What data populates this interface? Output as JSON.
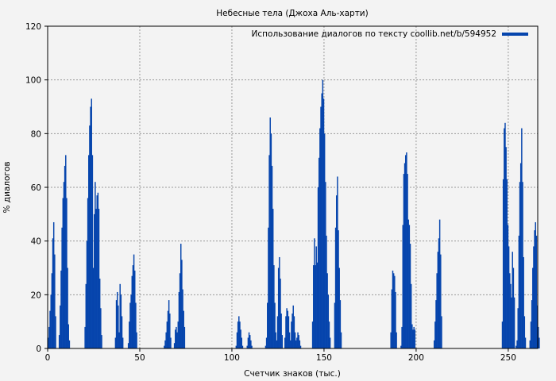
{
  "chart_data": {
    "type": "bar",
    "title": "Небесные тела (Джоха Аль-харти)",
    "xlabel": "Счетчик знаков (тыс.)",
    "ylabel": "% диалогов",
    "xlim": [
      0,
      266
    ],
    "ylim": [
      0,
      120
    ],
    "xticks": [
      0,
      50,
      100,
      150,
      200,
      250
    ],
    "yticks": [
      0,
      20,
      40,
      60,
      80,
      100,
      120
    ],
    "grid": true,
    "legend_placement": "top-right",
    "bin_width": 0.5,
    "series": [
      {
        "name": "Использование диалогов по тексту coollib.net/b/594952",
        "color": "#0645ad",
        "clusters": [
          {
            "start": 0,
            "values": [
              4,
              8,
              14,
              20,
              28,
              41,
              47,
              35,
              12
            ]
          },
          {
            "start": 6,
            "values": [
              5,
              16,
              29,
              45,
              56,
              62,
              68,
              72,
              56,
              30,
              9,
              3
            ]
          },
          {
            "start": 20,
            "values": [
              8,
              24,
              40,
              56,
              72,
              83,
              90,
              93,
              72,
              30,
              50,
              62,
              52,
              57,
              58,
              52,
              26,
              15,
              5
            ]
          },
          {
            "start": 36.5,
            "values": [
              4,
              18,
              21,
              16,
              6,
              24,
              20,
              12,
              4
            ]
          },
          {
            "start": 43.5,
            "values": [
              2,
              10,
              17,
              20,
              27,
              31,
              35,
              29,
              17,
              6
            ]
          },
          {
            "start": 63,
            "values": [
              1,
              3,
              6,
              10,
              14,
              18,
              13,
              4
            ]
          },
          {
            "start": 68.5,
            "values": [
              2,
              7,
              8,
              6,
              10,
              21,
              28,
              39,
              33,
              22,
              14,
              8
            ]
          },
          {
            "start": 102,
            "values": [
              1,
              6,
              10,
              12,
              10,
              7,
              4,
              1
            ]
          },
          {
            "start": 108,
            "values": [
              1,
              4,
              6,
              5,
              3,
              1
            ]
          },
          {
            "start": 118,
            "values": [
              1,
              4,
              17,
              45,
              72,
              86,
              80,
              68,
              52,
              31,
              17,
              6
            ]
          },
          {
            "start": 124,
            "values": [
              3,
              12,
              30,
              34,
              26,
              13,
              5
            ]
          },
          {
            "start": 128.5,
            "values": [
              4,
              12,
              15,
              14,
              12,
              6,
              3,
              10,
              13,
              16,
              12,
              6,
              3
            ]
          },
          {
            "start": 134.5,
            "values": [
              1,
              4,
              6,
              5,
              3,
              1
            ]
          },
          {
            "start": 143.5,
            "values": [
              10,
              31,
              41,
              31,
              38,
              32,
              60,
              71,
              82,
              90,
              95,
              100,
              93,
              80,
              62,
              42,
              28,
              20,
              10,
              4
            ]
          },
          {
            "start": 155.5,
            "values": [
              17,
              45,
              57,
              64,
              44,
              30,
              18,
              6
            ]
          },
          {
            "start": 186,
            "values": [
              6,
              22,
              29,
              28,
              27,
              21,
              6
            ]
          },
          {
            "start": 191.5,
            "values": [
              1,
              8,
              46,
              65,
              69,
              72,
              73,
              65,
              48,
              46,
              39,
              24,
              9,
              7,
              8,
              7
            ]
          },
          {
            "start": 209.5,
            "values": [
              3,
              10,
              18,
              28,
              36,
              41,
              48,
              35,
              12
            ]
          },
          {
            "start": 246.5,
            "values": [
              10,
              63,
              82,
              84,
              75,
              63,
              46,
              38,
              28,
              24,
              19,
              36,
              30,
              19
            ]
          },
          {
            "start": 254,
            "values": [
              1,
              3,
              15,
              42,
              62,
              69,
              82,
              62,
              34,
              12,
              4
            ]
          },
          {
            "start": 261.5,
            "values": [
              3,
              10,
              18,
              30,
              38,
              44,
              47,
              42,
              16,
              8,
              4
            ]
          }
        ]
      }
    ]
  }
}
